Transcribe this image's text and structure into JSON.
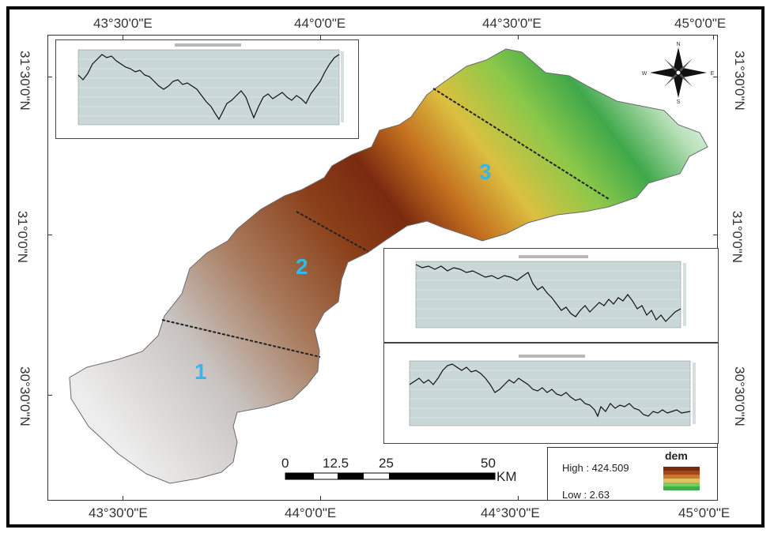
{
  "coords": {
    "top": [
      "43°30'0\"E",
      "44°0'0\"E",
      "44°30'0\"E",
      "45°0'0\"E"
    ],
    "bottom": [
      "43°30'0\"E",
      "44°0'0\"E",
      "44°30'0\"E",
      "45°0'0\"E"
    ],
    "left": [
      "31°30'0\"N",
      "31°0'0\"N",
      "30°30'0\"N"
    ],
    "right": [
      "31°30'0\"N",
      "31°0'0\"N",
      "30°30'0\"N"
    ]
  },
  "zones": [
    "1",
    "2",
    "3"
  ],
  "scale_bar": {
    "labels": [
      "0",
      "12.5",
      "25",
      "50"
    ],
    "unit": "KM"
  },
  "legend": {
    "title": "dem",
    "high": "High : 424.509",
    "low": "Low : 2.63",
    "ramp_colors": [
      "#7a2a10",
      "#a0491a",
      "#c97a30",
      "#e0c060",
      "#7ec860",
      "#3fae4a"
    ]
  },
  "north_arrow": {
    "letters": [
      "N",
      "S",
      "E",
      "W"
    ]
  },
  "colors": {
    "zone_label": "#35b8e6",
    "line": "#111111",
    "plot_bg": "#c9d7d8"
  }
}
